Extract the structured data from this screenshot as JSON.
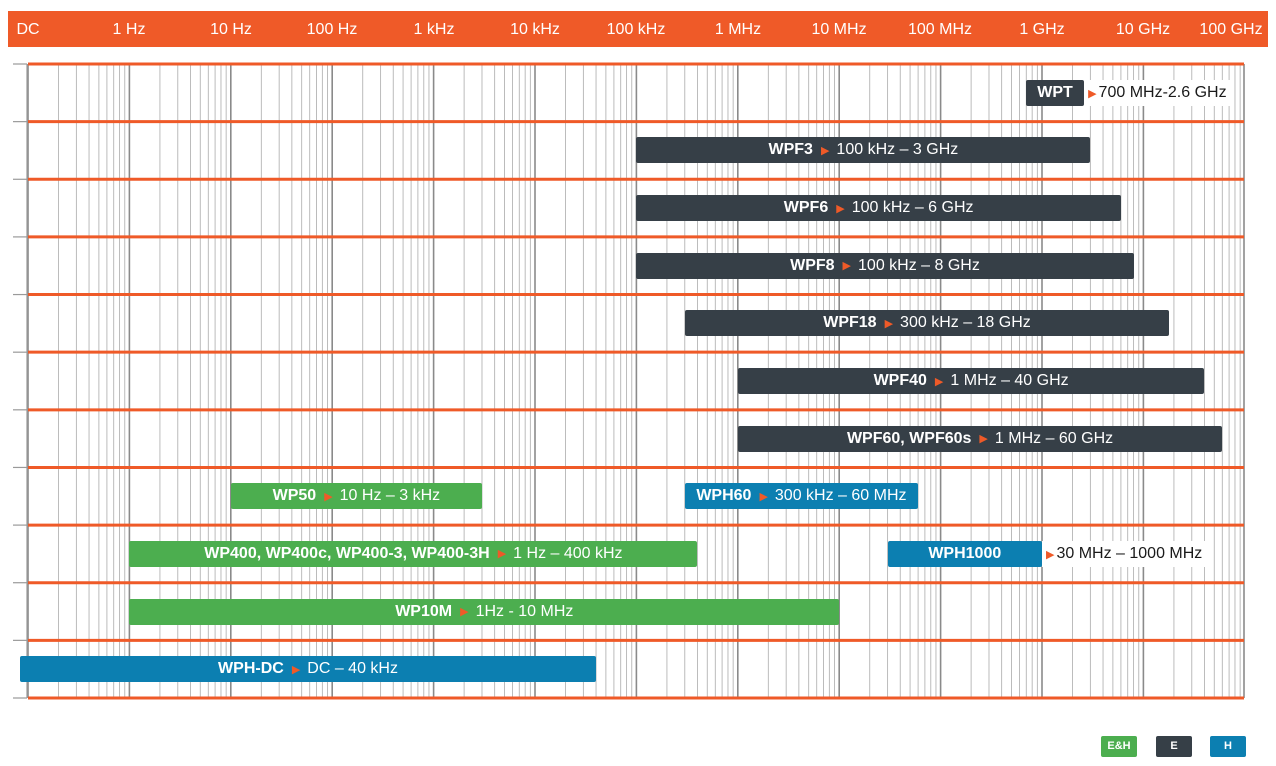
{
  "chart_data": {
    "type": "bar",
    "x_scale": "log",
    "x_ticks": [
      "DC",
      "1 Hz",
      "10 Hz",
      "100 Hz",
      "1 kHz",
      "10 kHz",
      "100 kHz",
      "1 MHz",
      "10 MHz",
      "100 MHz",
      "1 GHz",
      "10 GHz",
      "100 GHz"
    ],
    "grid": true,
    "colors": {
      "E&H": "#4cae4f",
      "E": "#363f47",
      "H": "#0c7fb1",
      "accent": "#ef5a28"
    },
    "bars": [
      {
        "name": "WPT",
        "range": "700 MHz-2.6 GHz",
        "from": "700 MHz",
        "to": "2.6 GHz",
        "type": "E",
        "row": 0,
        "label_outside": true
      },
      {
        "name": "WPF3",
        "range": "100 kHz – 3 GHz",
        "from": "100 kHz",
        "to": "3 GHz",
        "type": "E",
        "row": 1
      },
      {
        "name": "WPF6",
        "range": "100 kHz – 6 GHz",
        "from": "100 kHz",
        "to": "6 GHz",
        "type": "E",
        "row": 2
      },
      {
        "name": "WPF8",
        "range": "100 kHz – 8 GHz",
        "from": "100 kHz",
        "to": "8 GHz",
        "type": "E",
        "row": 3
      },
      {
        "name": "WPF18",
        "range": "300 kHz – 18 GHz",
        "from": "300 kHz",
        "to": "18 GHz",
        "type": "E",
        "row": 4
      },
      {
        "name": "WPF40",
        "range": "1 MHz – 40 GHz",
        "from": "1 MHz",
        "to": "40 GHz",
        "type": "E",
        "row": 5
      },
      {
        "name": "WPF60, WPF60s",
        "range": "1 MHz – 60 GHz",
        "from": "1 MHz",
        "to": "60 GHz",
        "type": "E",
        "row": 6
      },
      {
        "name": "WP50",
        "range": "10 Hz – 3 kHz",
        "from": "10 Hz",
        "to": "3 kHz",
        "type": "E&H",
        "row": 7
      },
      {
        "name": "WPH60",
        "range": "300 kHz – 60 MHz",
        "from": "300 kHz",
        "to": "60 MHz",
        "type": "H",
        "row": 7
      },
      {
        "name": "WP400, WP400c, WP400-3, WP400-3H",
        "range": "1 Hz – 400 kHz",
        "from": "1 Hz",
        "to": "400 kHz",
        "type": "E&H",
        "row": 8
      },
      {
        "name": "WPH1000",
        "range": "30 MHz – 1000 MHz",
        "from": "30 MHz",
        "to": "1000 MHz",
        "type": "H",
        "row": 8,
        "label_outside": true
      },
      {
        "name": "WP10M",
        "range": "1Hz - 10 MHz",
        "from": "1 Hz",
        "to": "10 MHz",
        "type": "E&H",
        "row": 9
      },
      {
        "name": "WPH-DC",
        "range": "DC – 40 kHz",
        "from": "DC",
        "to": "40 kHz",
        "type": "H",
        "row": 10
      }
    ],
    "legend": [
      {
        "label": "E&H",
        "type": "E&H"
      },
      {
        "label": "E",
        "type": "E"
      },
      {
        "label": "H",
        "type": "H"
      }
    ]
  }
}
